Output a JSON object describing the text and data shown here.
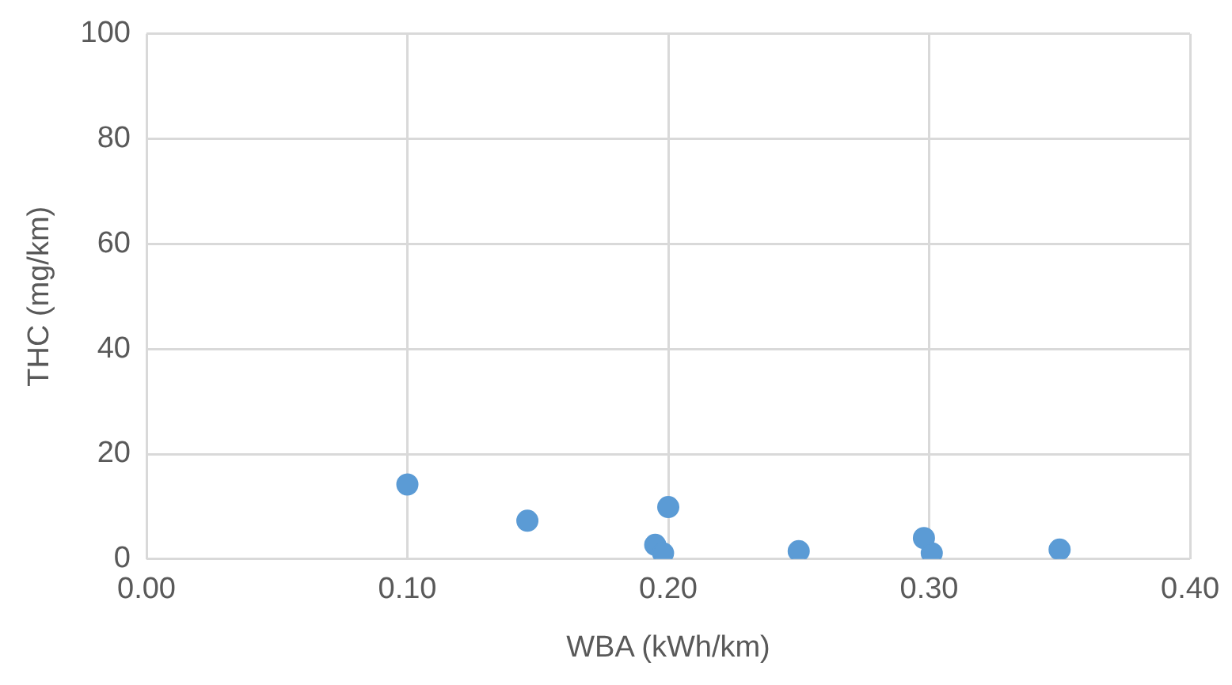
{
  "chart_data": {
    "type": "scatter",
    "xlabel": "WBA (kWh/km)",
    "ylabel": "THC (mg/km)",
    "x": [
      0.1,
      0.146,
      0.2,
      0.195,
      0.198,
      0.25,
      0.298,
      0.301,
      0.35
    ],
    "values": [
      14.2,
      7.3,
      9.9,
      2.7,
      1.1,
      1.5,
      4.0,
      1.1,
      1.8
    ],
    "color": "#5b9bd5",
    "xlim": [
      0,
      0.4
    ],
    "xticks": [
      {
        "value": 0,
        "label": "0.00"
      },
      {
        "value": 0.1,
        "label": "0.10"
      },
      {
        "value": 0.2,
        "label": "0.20"
      },
      {
        "value": 0.3,
        "label": "0.30"
      },
      {
        "value": 0.4,
        "label": "0.40"
      }
    ],
    "ylim": [
      0,
      100
    ],
    "yticks": [
      0,
      20,
      40,
      60,
      80,
      100
    ],
    "grid": true,
    "legend": false,
    "marker": "circle"
  }
}
